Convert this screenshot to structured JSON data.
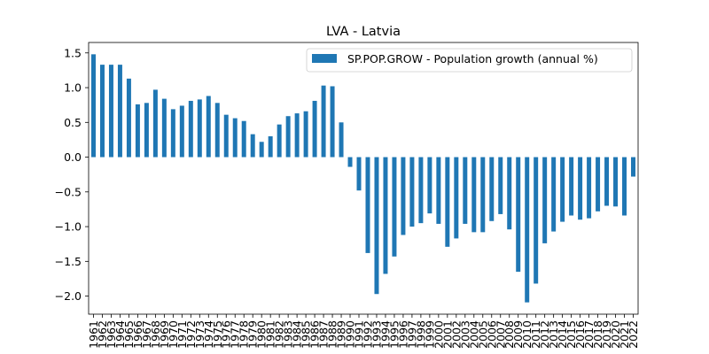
{
  "chart_data": {
    "type": "bar",
    "title": "LVA - Latvia",
    "xlabel": "",
    "ylabel": "",
    "ylim": [
      -2.26,
      1.65
    ],
    "yticks": [
      -2.0,
      -1.5,
      -1.0,
      -0.5,
      0.0,
      0.5,
      1.0,
      1.5
    ],
    "legend_position": "top-right",
    "grid": false,
    "bar_color": "#1f77b4",
    "categories": [
      "1961",
      "1962",
      "1963",
      "1964",
      "1965",
      "1966",
      "1967",
      "1968",
      "1969",
      "1970",
      "1971",
      "1972",
      "1973",
      "1974",
      "1975",
      "1976",
      "1977",
      "1978",
      "1979",
      "1980",
      "1981",
      "1982",
      "1983",
      "1984",
      "1985",
      "1986",
      "1987",
      "1988",
      "1989",
      "1990",
      "1991",
      "1992",
      "1993",
      "1994",
      "1995",
      "1996",
      "1997",
      "1998",
      "1999",
      "2000",
      "2001",
      "2002",
      "2003",
      "2004",
      "2005",
      "2006",
      "2007",
      "2008",
      "2009",
      "2010",
      "2011",
      "2012",
      "2013",
      "2014",
      "2015",
      "2016",
      "2017",
      "2018",
      "2019",
      "2020",
      "2021",
      "2022"
    ],
    "series": [
      {
        "name": "SP.POP.GROW - Population growth (annual %)",
        "values": [
          1.48,
          1.33,
          1.33,
          1.33,
          1.13,
          0.76,
          0.78,
          0.97,
          0.84,
          0.69,
          0.74,
          0.81,
          0.83,
          0.88,
          0.78,
          0.61,
          0.56,
          0.52,
          0.33,
          0.22,
          0.3,
          0.47,
          0.59,
          0.63,
          0.66,
          0.81,
          1.03,
          1.02,
          0.5,
          -0.14,
          -0.48,
          -1.38,
          -1.97,
          -1.68,
          -1.43,
          -1.12,
          -1.0,
          -0.95,
          -0.81,
          -0.96,
          -1.29,
          -1.17,
          -0.96,
          -1.08,
          -1.08,
          -0.92,
          -0.82,
          -1.04,
          -1.65,
          -2.09,
          -1.82,
          -1.24,
          -1.07,
          -0.93,
          -0.84,
          -0.9,
          -0.88,
          -0.78,
          -0.7,
          -0.71,
          -0.84,
          -0.28
        ]
      }
    ]
  }
}
